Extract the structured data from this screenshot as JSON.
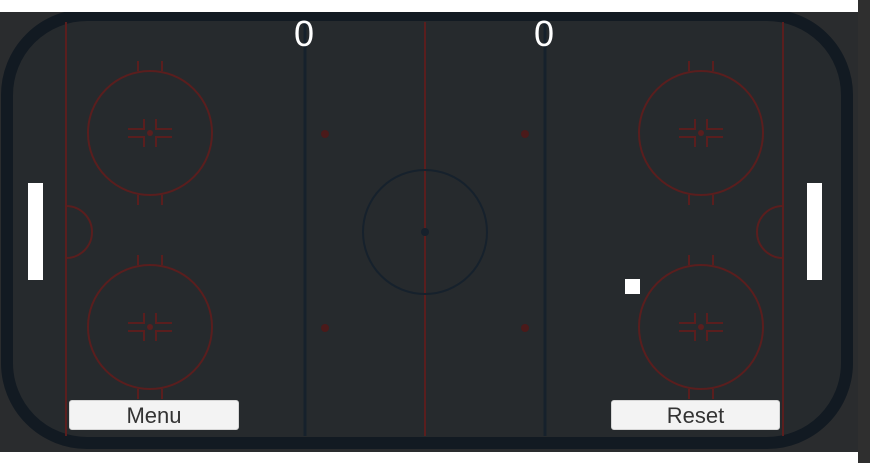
{
  "scoreboard": {
    "left_score": "0",
    "right_score": "0"
  },
  "buttons": {
    "menu_label": "Menu",
    "reset_label": "Reset"
  },
  "colors": {
    "background": "#2a2c2e",
    "ice": "#262a2d",
    "boards": "#121a22",
    "red_line": "#5a1e1e",
    "blue_line": "#16212c",
    "paddle": "#ffffff",
    "puck": "#ffffff",
    "button_bg": "#f3f3f3"
  }
}
